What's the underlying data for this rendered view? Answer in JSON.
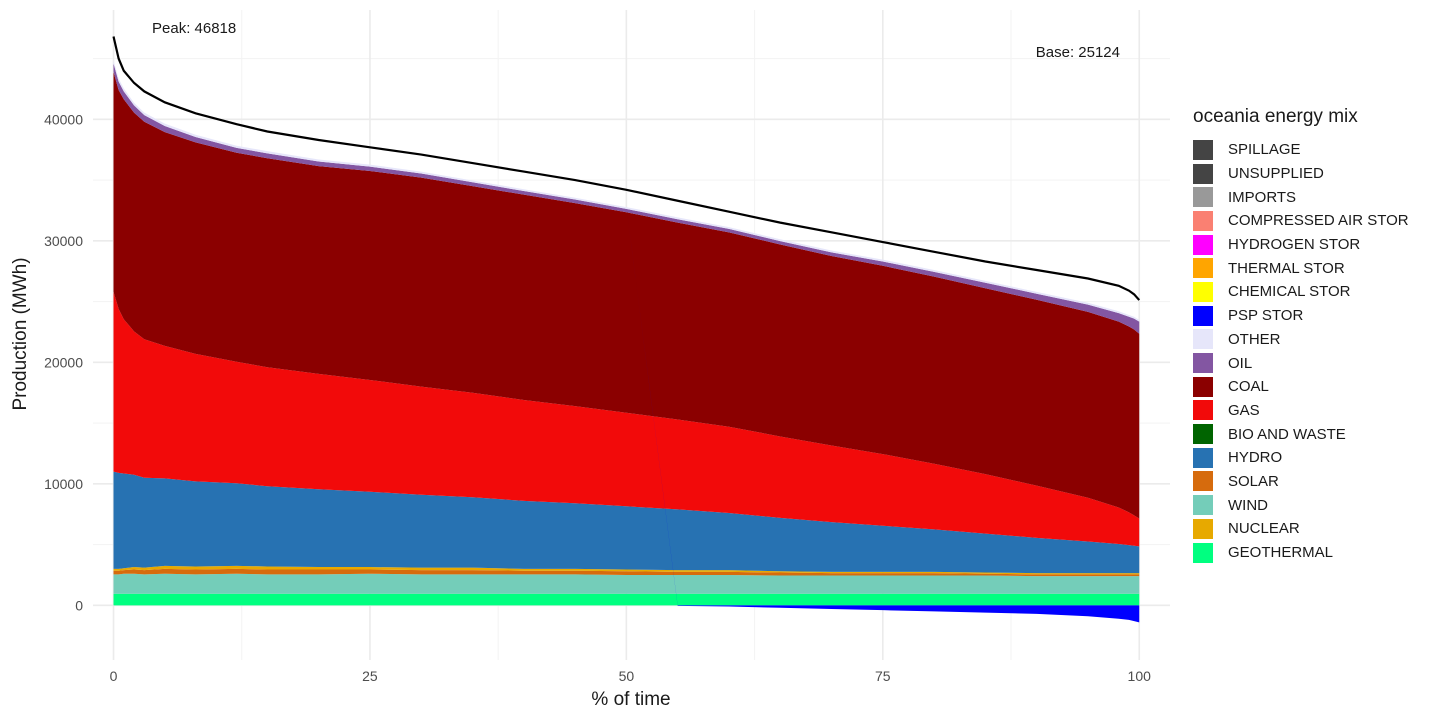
{
  "chart_data": {
    "type": "area",
    "xlabel": "% of time",
    "ylabel": "Production (MWh)",
    "xlim": [
      -2,
      103
    ],
    "ylim": [
      -4500,
      49000
    ],
    "x_ticks": [
      0,
      25,
      50,
      75,
      100
    ],
    "y_ticks": [
      0,
      10000,
      20000,
      30000,
      40000
    ],
    "grid": true,
    "legend_position": "right",
    "legend_title": "oceania energy mix",
    "annotations": {
      "peak": "Peak: 46818",
      "base": "Base: 25124"
    },
    "legend": [
      {
        "name": "SPILLAGE",
        "color": "#444444"
      },
      {
        "name": "UNSUPPLIED",
        "color": "#444444"
      },
      {
        "name": "IMPORTS",
        "color": "#999999"
      },
      {
        "name": "COMPRESSED AIR STOR",
        "color": "#fa8072"
      },
      {
        "name": "HYDROGEN STOR",
        "color": "#ff00ff"
      },
      {
        "name": "THERMAL STOR",
        "color": "#ffa500"
      },
      {
        "name": "CHEMICAL STOR",
        "color": "#ffff00"
      },
      {
        "name": "PSP STOR",
        "color": "#0000ff"
      },
      {
        "name": "OTHER",
        "color": "#e6e6fa"
      },
      {
        "name": "OIL",
        "color": "#8356a2"
      },
      {
        "name": "COAL",
        "color": "#8b0000"
      },
      {
        "name": "GAS",
        "color": "#f20a0a"
      },
      {
        "name": "BIO AND WASTE",
        "color": "#006400"
      },
      {
        "name": "HYDRO",
        "color": "#2772b2"
      },
      {
        "name": "SOLAR",
        "color": "#d66b0d"
      },
      {
        "name": "WIND",
        "color": "#74cdb9"
      },
      {
        "name": "NUCLEAR",
        "color": "#e7a900"
      },
      {
        "name": "GEOTHERMAL",
        "color": "#00ff80"
      }
    ],
    "x": [
      0,
      0.5,
      1,
      2,
      3,
      5,
      8,
      12,
      15,
      20,
      25,
      30,
      35,
      40,
      45,
      50,
      55,
      60,
      65,
      70,
      75,
      80,
      85,
      90,
      95,
      98,
      99,
      99.5,
      100
    ],
    "load": [
      46818,
      45000,
      44000,
      43000,
      42300,
      41400,
      40500,
      39600,
      39000,
      38300,
      37700,
      37100,
      36400,
      35700,
      35000,
      34200,
      33300,
      32400,
      31500,
      30700,
      29900,
      29100,
      28300,
      27600,
      26900,
      26300,
      25900,
      25600,
      25124
    ],
    "series": [
      {
        "name": "GEOTHERMAL",
        "color": "#00ff80",
        "values": [
          950,
          950,
          950,
          950,
          950,
          950,
          950,
          950,
          950,
          950,
          950,
          950,
          950,
          950,
          950,
          950,
          950,
          950,
          950,
          950,
          950,
          950,
          950,
          950,
          950,
          950,
          950,
          950,
          950
        ]
      },
      {
        "name": "WIND",
        "color": "#74cdb9",
        "values": [
          1600,
          1600,
          1650,
          1650,
          1600,
          1650,
          1600,
          1650,
          1600,
          1600,
          1650,
          1600,
          1600,
          1600,
          1600,
          1550,
          1550,
          1550,
          1500,
          1500,
          1500,
          1500,
          1500,
          1450,
          1450,
          1450,
          1450,
          1450,
          1450
        ]
      },
      {
        "name": "SOLAR",
        "color": "#d66b0d",
        "values": [
          300,
          300,
          300,
          350,
          350,
          400,
          400,
          400,
          400,
          400,
          350,
          350,
          350,
          300,
          300,
          300,
          250,
          250,
          250,
          200,
          200,
          200,
          150,
          150,
          150,
          150,
          150,
          150,
          150
        ]
      },
      {
        "name": "NUCLEAR",
        "color": "#e7a900",
        "values": [
          150,
          150,
          150,
          200,
          200,
          250,
          250,
          250,
          250,
          200,
          200,
          200,
          200,
          150,
          150,
          150,
          150,
          150,
          100,
          100,
          100,
          100,
          100,
          100,
          100,
          100,
          100,
          100,
          100
        ]
      },
      {
        "name": "HYDRO",
        "color": "#2772b2",
        "values": [
          8000,
          7900,
          7800,
          7600,
          7400,
          7200,
          7000,
          6800,
          6600,
          6400,
          6200,
          6000,
          5800,
          5600,
          5400,
          5200,
          5000,
          4700,
          4400,
          4100,
          3800,
          3500,
          3200,
          2900,
          2600,
          2400,
          2300,
          2250,
          2200
        ]
      },
      {
        "name": "GAS",
        "color": "#f20a0a",
        "values": [
          14800,
          13500,
          12700,
          11800,
          11400,
          10900,
          10500,
          10000,
          9800,
          9500,
          9200,
          8900,
          8600,
          8300,
          8000,
          7700,
          7400,
          7100,
          6700,
          6300,
          5900,
          5400,
          4900,
          4300,
          3600,
          3000,
          2700,
          2500,
          2300
        ]
      },
      {
        "name": "COAL",
        "color": "#8b0000",
        "values": [
          18100,
          18000,
          18100,
          18000,
          17900,
          17600,
          17400,
          17200,
          17200,
          17100,
          17200,
          17200,
          17000,
          16900,
          16700,
          16500,
          16200,
          16000,
          15800,
          15600,
          15500,
          15400,
          15300,
          15300,
          15300,
          15300,
          15300,
          15300,
          15200
        ]
      },
      {
        "name": "OIL",
        "color": "#8356a2",
        "values": [
          700,
          700,
          650,
          600,
          550,
          500,
          450,
          400,
          400,
          380,
          360,
          340,
          320,
          300,
          300,
          280,
          280,
          280,
          280,
          300,
          350,
          400,
          450,
          500,
          600,
          700,
          800,
          900,
          1000
        ]
      },
      {
        "name": "OTHER",
        "color": "#e6e6fa",
        "values": [
          250,
          250,
          250,
          220,
          200,
          200,
          180,
          180,
          180,
          160,
          160,
          160,
          150,
          150,
          150,
          150,
          150,
          150,
          150,
          150,
          150,
          150,
          150,
          150,
          150,
          150,
          150,
          150,
          150
        ]
      },
      {
        "name": "PSP STOR",
        "color": "#0000ff",
        "values": [
          0,
          0,
          0,
          0,
          0,
          0,
          0,
          0,
          0,
          0,
          0,
          0,
          0,
          0,
          0,
          0,
          -50,
          -100,
          -200,
          -300,
          -400,
          -500,
          -600,
          -700,
          -900,
          -1100,
          -1200,
          -1300,
          -1400
        ]
      }
    ]
  }
}
